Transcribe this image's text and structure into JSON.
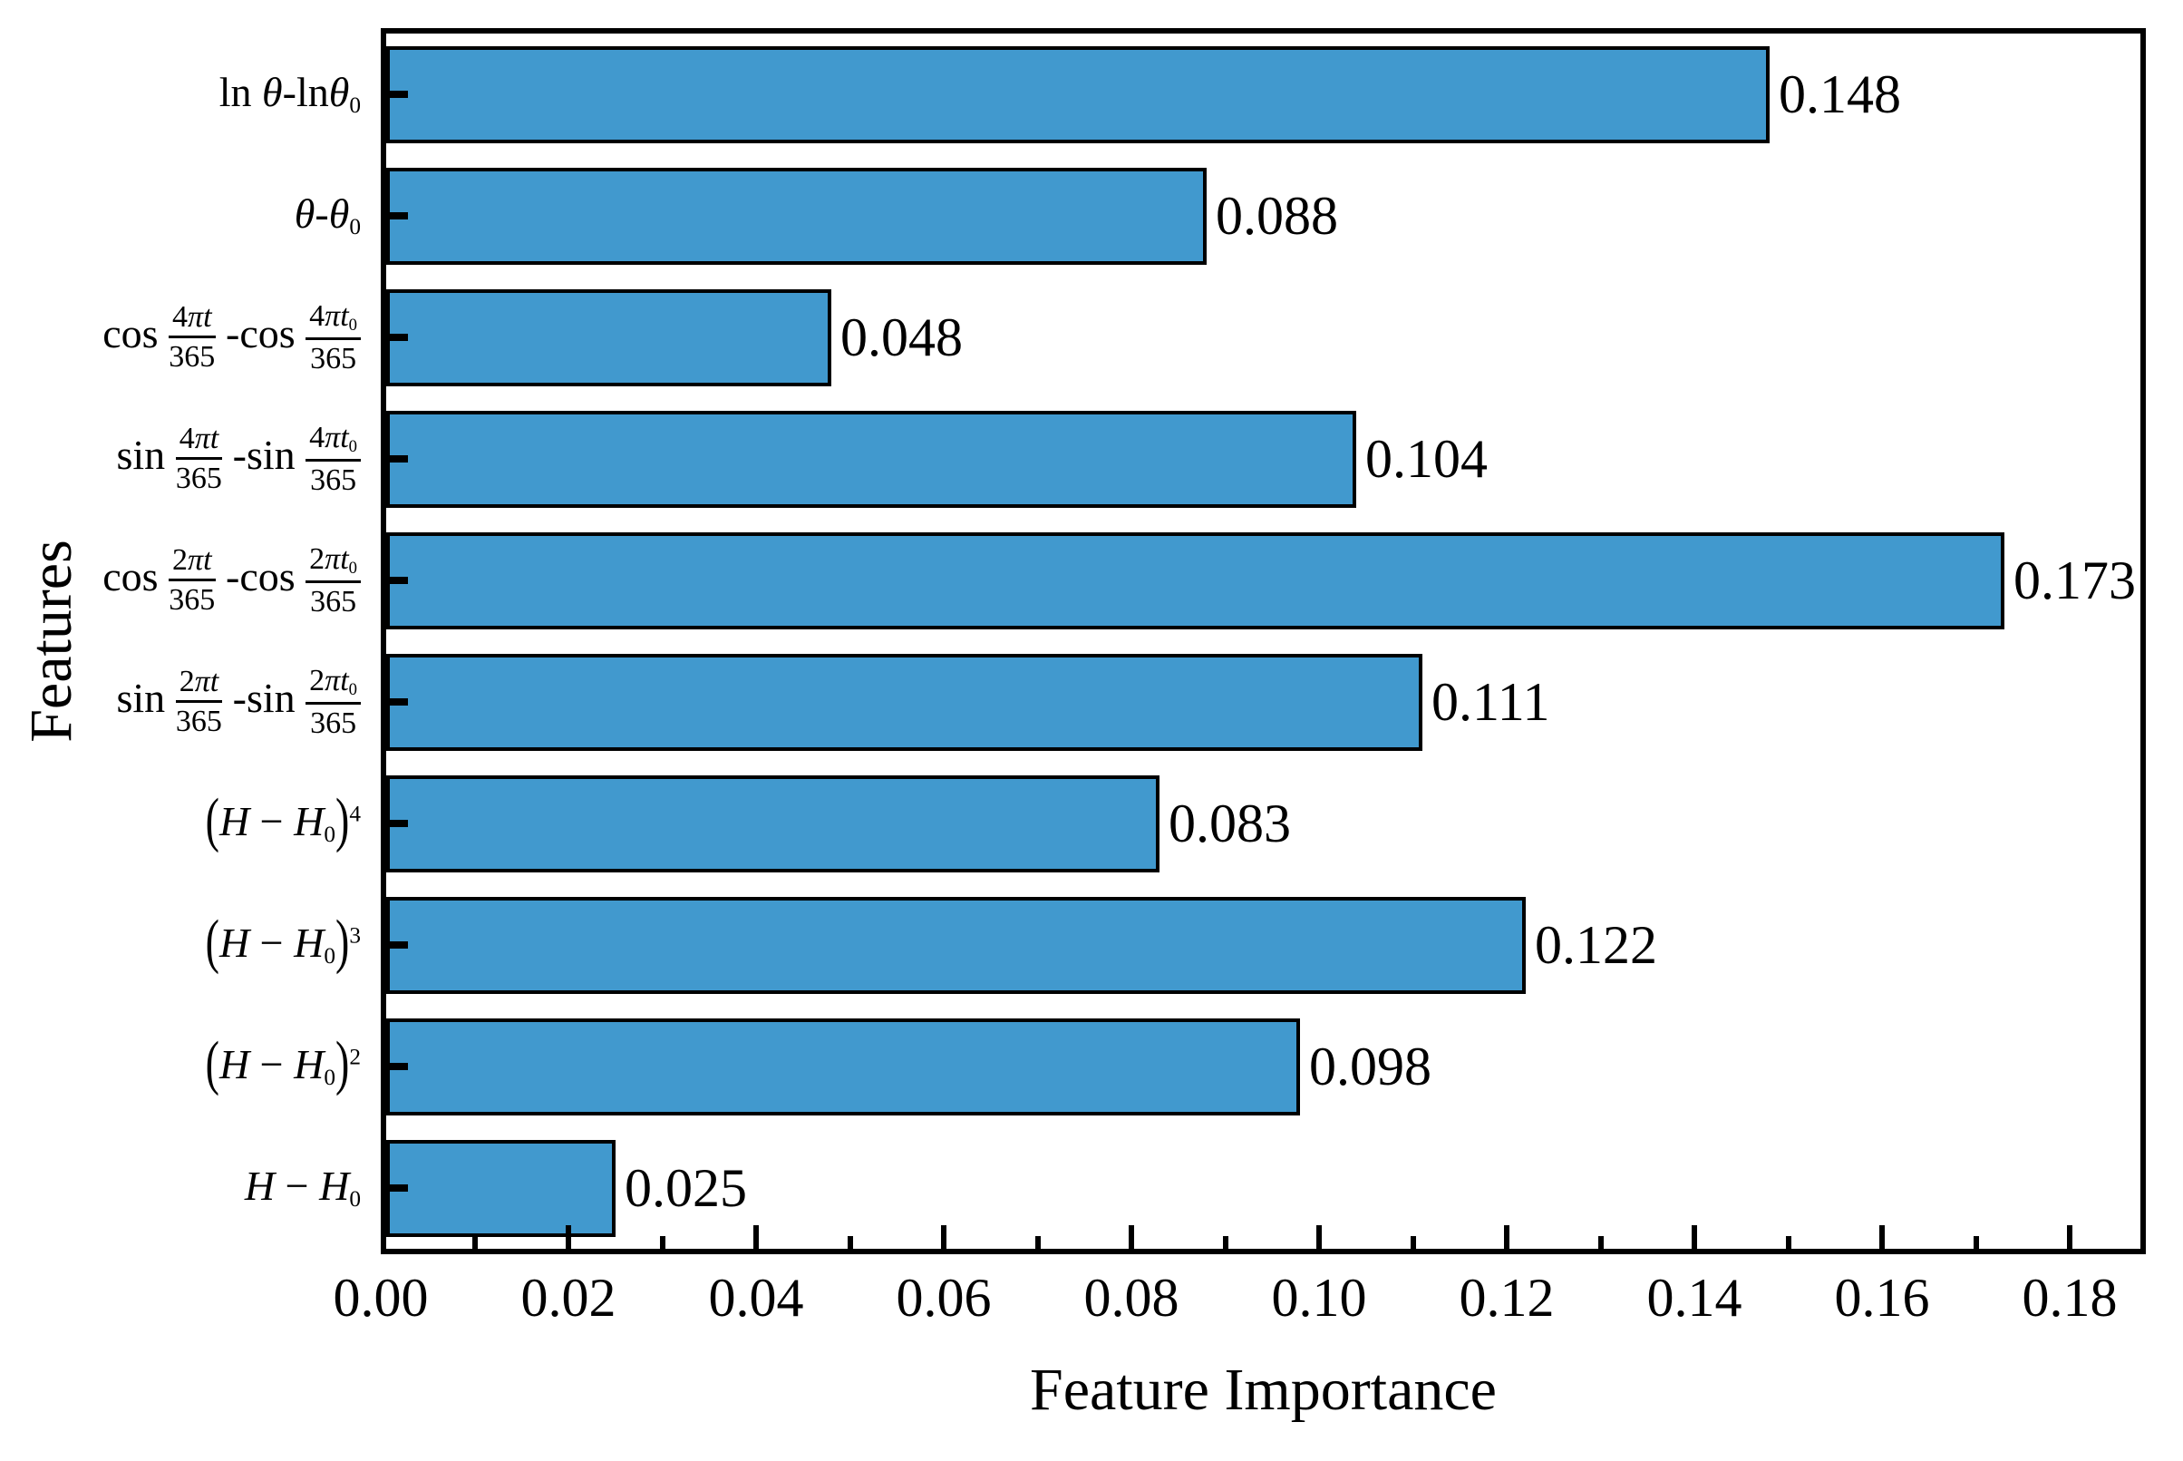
{
  "chart_data": {
    "type": "bar",
    "orientation": "horizontal",
    "title": "",
    "xlabel": "Feature Importance",
    "ylabel": "Features",
    "xlim": [
      0,
      0.188
    ],
    "grid": false,
    "legend": false,
    "bar_color": "#4199CE",
    "bar_edge_color": "#000000",
    "axis_color": "#000000",
    "x_major_tick_labels": [
      "0.00",
      "0.02",
      "0.04",
      "0.06",
      "0.08",
      "0.10",
      "0.12",
      "0.14",
      "0.16",
      "0.18"
    ],
    "x_major_tick_values": [
      0.0,
      0.02,
      0.04,
      0.06,
      0.08,
      0.1,
      0.12,
      0.14,
      0.16,
      0.18
    ],
    "x_minor_tick_values": [
      0.01,
      0.03,
      0.05,
      0.07,
      0.09,
      0.11,
      0.13,
      0.15,
      0.17
    ],
    "categories": [
      "ln θ-lnθ₀",
      "θ-θ₀",
      "cos(4πt/365)-cos(4πt₀/365)",
      "sin(4πt/365)-sin(4πt₀/365)",
      "cos(2πt/365)-cos(2πt₀/365)",
      "sin(2πt/365)-sin(2πt₀/365)",
      "(H−H₀)⁴",
      "(H−H₀)³",
      "(H−H₀)²",
      "H−H₀"
    ],
    "values": [
      0.148,
      0.088,
      0.048,
      0.104,
      0.173,
      0.111,
      0.083,
      0.122,
      0.098,
      0.025
    ],
    "value_labels": [
      "0.148",
      "0.088",
      "0.048",
      "0.104",
      "0.173",
      "0.111",
      "0.083",
      "0.122",
      "0.098",
      "0.025"
    ],
    "category_tokens": [
      [
        {
          "k": "rm",
          "v": "ln "
        },
        {
          "k": "it",
          "v": "θ"
        },
        {
          "k": "rm",
          "v": "-ln"
        },
        {
          "k": "it",
          "v": "θ"
        },
        {
          "k": "sub",
          "v": "0"
        }
      ],
      [
        {
          "k": "it",
          "v": "θ"
        },
        {
          "k": "rm",
          "v": "-"
        },
        {
          "k": "it",
          "v": "θ"
        },
        {
          "k": "sub",
          "v": "0"
        }
      ],
      [
        {
          "k": "rm",
          "v": "cos "
        },
        {
          "k": "frac",
          "num": [
            {
              "k": "rm",
              "v": "4"
            },
            {
              "k": "it",
              "v": "πt"
            }
          ],
          "den": [
            {
              "k": "rm",
              "v": "365"
            }
          ]
        },
        {
          "k": "rm",
          "v": " -cos "
        },
        {
          "k": "frac",
          "num": [
            {
              "k": "rm",
              "v": "4"
            },
            {
              "k": "it",
              "v": "πt"
            },
            {
              "k": "sub",
              "v": "0"
            }
          ],
          "den": [
            {
              "k": "rm",
              "v": "365"
            }
          ]
        }
      ],
      [
        {
          "k": "rm",
          "v": "sin "
        },
        {
          "k": "frac",
          "num": [
            {
              "k": "rm",
              "v": "4"
            },
            {
              "k": "it",
              "v": "πt"
            }
          ],
          "den": [
            {
              "k": "rm",
              "v": "365"
            }
          ]
        },
        {
          "k": "rm",
          "v": " -sin "
        },
        {
          "k": "frac",
          "num": [
            {
              "k": "rm",
              "v": "4"
            },
            {
              "k": "it",
              "v": "πt"
            },
            {
              "k": "sub",
              "v": "0"
            }
          ],
          "den": [
            {
              "k": "rm",
              "v": "365"
            }
          ]
        }
      ],
      [
        {
          "k": "rm",
          "v": "cos "
        },
        {
          "k": "frac",
          "num": [
            {
              "k": "rm",
              "v": "2"
            },
            {
              "k": "it",
              "v": "πt"
            }
          ],
          "den": [
            {
              "k": "rm",
              "v": "365"
            }
          ]
        },
        {
          "k": "rm",
          "v": " -cos "
        },
        {
          "k": "frac",
          "num": [
            {
              "k": "rm",
              "v": "2"
            },
            {
              "k": "it",
              "v": "πt"
            },
            {
              "k": "sub",
              "v": "0"
            }
          ],
          "den": [
            {
              "k": "rm",
              "v": "365"
            }
          ]
        }
      ],
      [
        {
          "k": "rm",
          "v": "sin "
        },
        {
          "k": "frac",
          "num": [
            {
              "k": "rm",
              "v": "2"
            },
            {
              "k": "it",
              "v": "πt"
            }
          ],
          "den": [
            {
              "k": "rm",
              "v": "365"
            }
          ]
        },
        {
          "k": "rm",
          "v": " -sin "
        },
        {
          "k": "frac",
          "num": [
            {
              "k": "rm",
              "v": "2"
            },
            {
              "k": "it",
              "v": "πt"
            },
            {
              "k": "sub",
              "v": "0"
            }
          ],
          "den": [
            {
              "k": "rm",
              "v": "365"
            }
          ]
        }
      ],
      [
        {
          "k": "big",
          "v": "("
        },
        {
          "k": "it",
          "v": "H"
        },
        {
          "k": "rm",
          "v": " − "
        },
        {
          "k": "it",
          "v": "H"
        },
        {
          "k": "sub",
          "v": "0"
        },
        {
          "k": "big",
          "v": ")"
        },
        {
          "k": "sup",
          "v": "4"
        }
      ],
      [
        {
          "k": "big",
          "v": "("
        },
        {
          "k": "it",
          "v": "H"
        },
        {
          "k": "rm",
          "v": " − "
        },
        {
          "k": "it",
          "v": "H"
        },
        {
          "k": "sub",
          "v": "0"
        },
        {
          "k": "big",
          "v": ")"
        },
        {
          "k": "sup",
          "v": "3"
        }
      ],
      [
        {
          "k": "big",
          "v": "("
        },
        {
          "k": "it",
          "v": "H"
        },
        {
          "k": "rm",
          "v": " − "
        },
        {
          "k": "it",
          "v": "H"
        },
        {
          "k": "sub",
          "v": "0"
        },
        {
          "k": "big",
          "v": ")"
        },
        {
          "k": "sup",
          "v": "2"
        }
      ],
      [
        {
          "k": "it",
          "v": "H"
        },
        {
          "k": "rm",
          "v": " − "
        },
        {
          "k": "it",
          "v": "H"
        },
        {
          "k": "sub",
          "v": "0"
        }
      ]
    ]
  }
}
